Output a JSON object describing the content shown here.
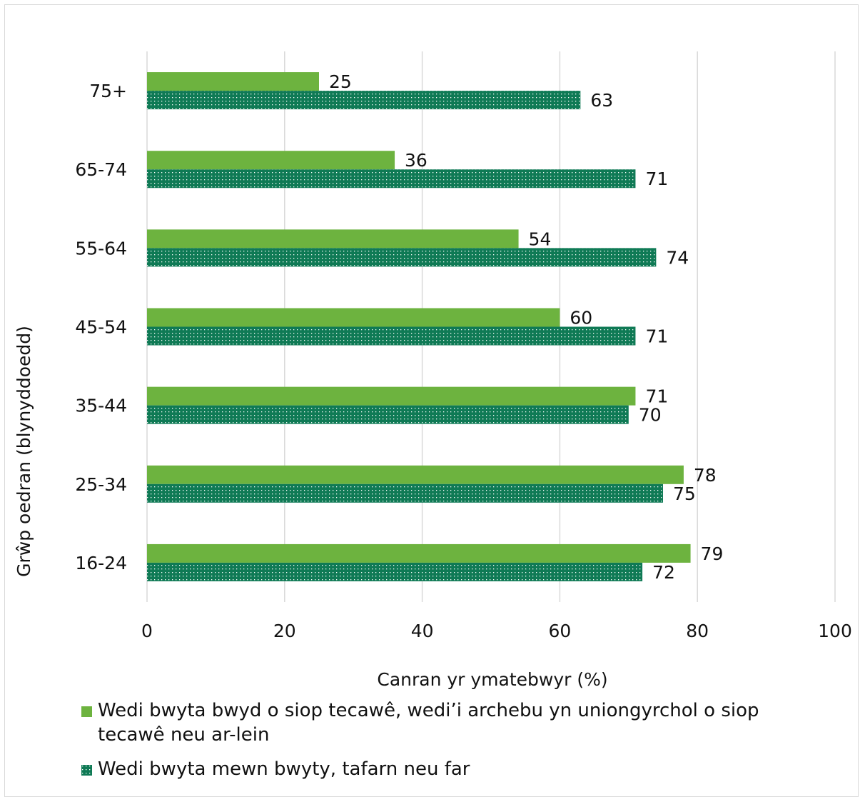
{
  "chart_data": {
    "type": "bar",
    "orientation": "horizontal",
    "categories": [
      "75+",
      "65-74",
      "55-64",
      "45-54",
      "35-44",
      "25-34",
      "16-24"
    ],
    "series": [
      {
        "name": "Wedi bwyta bwyd o siop tecawê, wedi’i archebu yn uniongyrchol o siop tecawê neu ar-lein",
        "values": [
          25,
          36,
          54,
          60,
          71,
          78,
          79
        ],
        "color": "#6db33f",
        "pattern": "solid"
      },
      {
        "name": "Wedi bwyta mewn bwyty, tafarn neu far",
        "values": [
          63,
          71,
          74,
          71,
          70,
          75,
          72
        ],
        "color": "#0f7a55",
        "pattern": "dotted"
      }
    ],
    "xlabel": "Canran yr ymatebwyr (%)",
    "ylabel": "Grŵp oedran (blynyddoedd)",
    "xlim": [
      0,
      100
    ],
    "xticks": [
      "0",
      "20",
      "40",
      "60",
      "80",
      "100"
    ],
    "grid": "vertical",
    "legend_position": "bottom",
    "data_labels": true
  }
}
